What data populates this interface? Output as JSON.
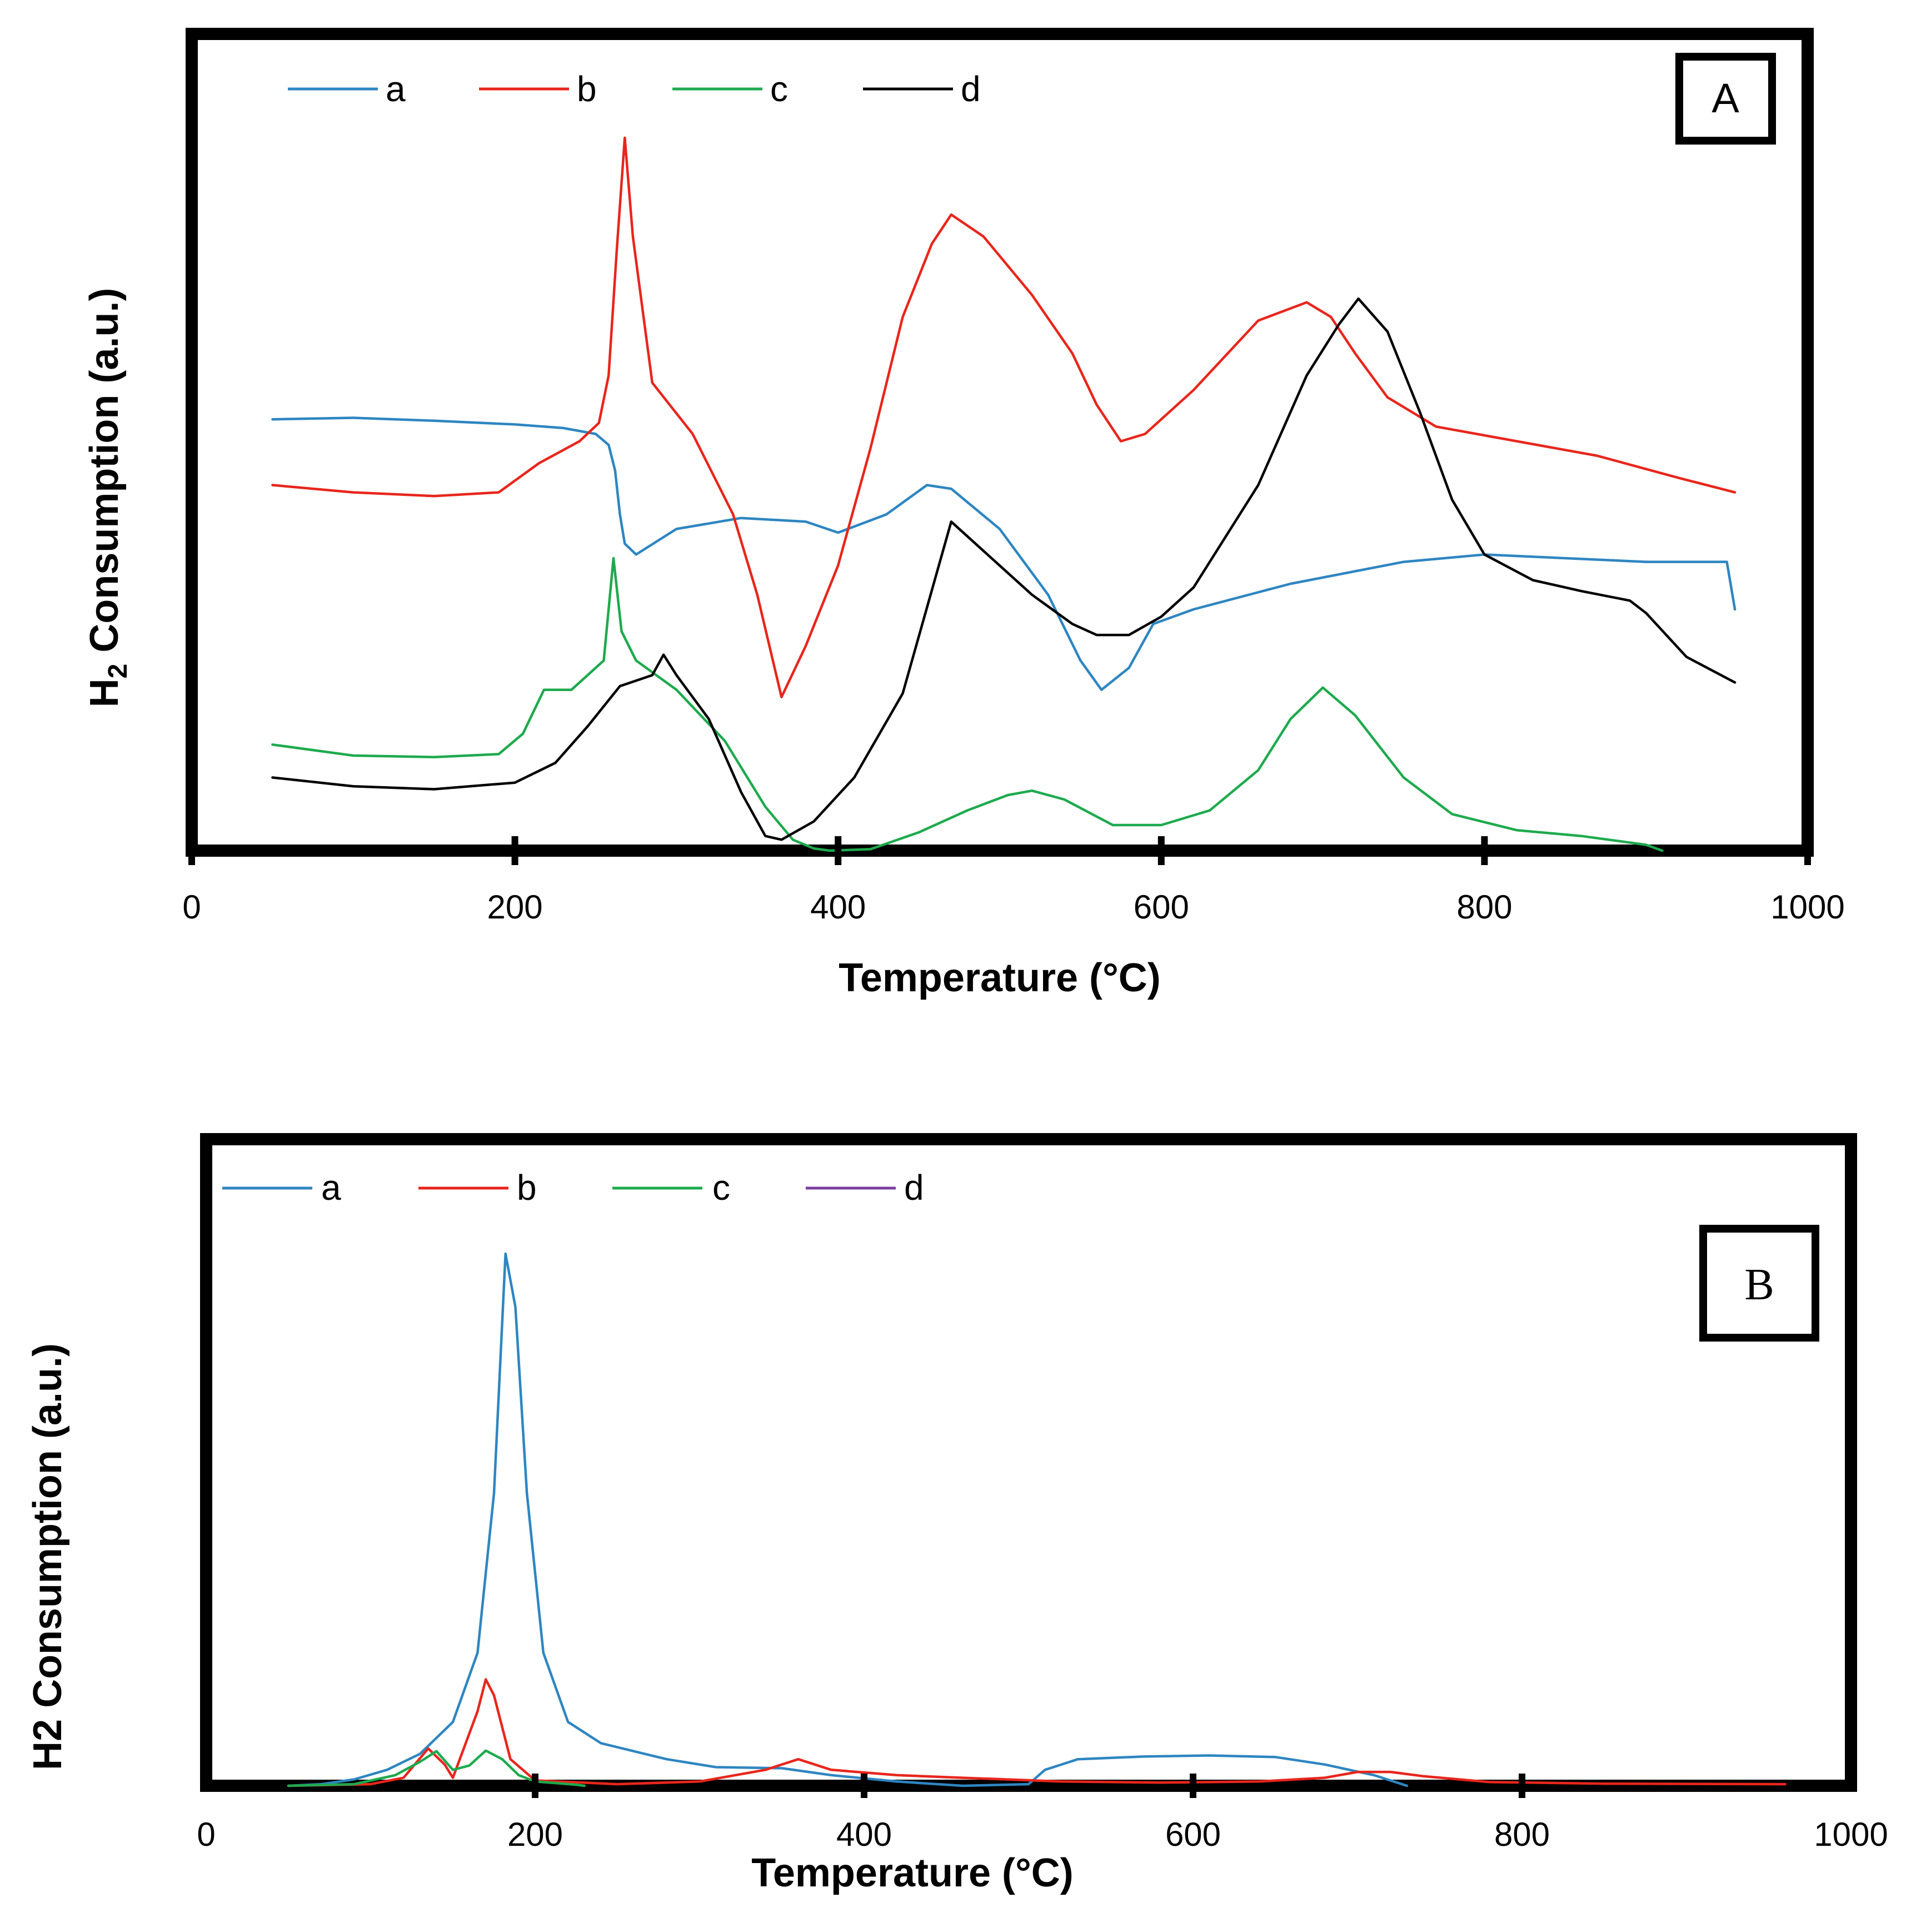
{
  "chart_data": [
    {
      "panel": "A",
      "type": "line",
      "xlabel": "Temperature (°C)",
      "ylabel": "H2 Consumption (a.u.)",
      "ylabel_main": "H",
      "ylabel_sub": "2",
      "ylabel_rest": " Consumption (a.u.)",
      "xlim": [
        0,
        1000
      ],
      "ylim": [
        0,
        100
      ],
      "xticks": [
        0,
        200,
        400,
        600,
        800,
        1000
      ],
      "xtick_labels": [
        "0",
        "200",
        "400",
        "600",
        "800",
        "1000"
      ],
      "grid": false,
      "legend_position": "top-left",
      "series": [
        {
          "name": "a",
          "color": "#2e86c1",
          "points": [
            [
              50,
              59
            ],
            [
              100,
              59.2
            ],
            [
              150,
              58.8
            ],
            [
              200,
              58.3
            ],
            [
              230,
              57.8
            ],
            [
              250,
              57
            ],
            [
              258,
              55.5
            ],
            [
              262,
              52
            ],
            [
              265,
              46
            ],
            [
              268,
              42
            ],
            [
              275,
              40.5
            ],
            [
              300,
              44
            ],
            [
              340,
              45.5
            ],
            [
              380,
              45
            ],
            [
              400,
              43.5
            ],
            [
              430,
              46
            ],
            [
              455,
              50
            ],
            [
              470,
              49.5
            ],
            [
              500,
              44
            ],
            [
              530,
              35
            ],
            [
              550,
              26
            ],
            [
              563,
              22
            ],
            [
              580,
              25
            ],
            [
              595,
              31
            ],
            [
              620,
              33
            ],
            [
              680,
              36.5
            ],
            [
              750,
              39.5
            ],
            [
              800,
              40.5
            ],
            [
              850,
              40
            ],
            [
              900,
              39.5
            ],
            [
              950,
              39.5
            ],
            [
              955,
              33
            ]
          ]
        },
        {
          "name": "b",
          "color": "#e8261c",
          "points": [
            [
              50,
              50
            ],
            [
              100,
              49
            ],
            [
              150,
              48.5
            ],
            [
              190,
              49
            ],
            [
              215,
              53
            ],
            [
              240,
              56
            ],
            [
              252,
              58.5
            ],
            [
              258,
              65
            ],
            [
              263,
              82
            ],
            [
              268,
              97.5
            ],
            [
              273,
              84
            ],
            [
              285,
              64
            ],
            [
              310,
              57
            ],
            [
              335,
              46
            ],
            [
              350,
              35
            ],
            [
              365,
              21
            ],
            [
              380,
              28
            ],
            [
              400,
              39
            ],
            [
              420,
              55
            ],
            [
              440,
              73
            ],
            [
              458,
              83
            ],
            [
              470,
              87
            ],
            [
              490,
              84
            ],
            [
              520,
              76
            ],
            [
              545,
              68
            ],
            [
              560,
              61
            ],
            [
              575,
              56
            ],
            [
              590,
              57
            ],
            [
              620,
              63
            ],
            [
              660,
              72.5
            ],
            [
              690,
              75
            ],
            [
              705,
              73
            ],
            [
              720,
              68
            ],
            [
              740,
              62
            ],
            [
              770,
              58
            ],
            [
              820,
              56
            ],
            [
              870,
              54
            ],
            [
              920,
              51
            ],
            [
              955,
              49
            ]
          ]
        },
        {
          "name": "c",
          "color": "#1eaa4e",
          "points": [
            [
              50,
              14.5
            ],
            [
              100,
              13
            ],
            [
              150,
              12.8
            ],
            [
              190,
              13.2
            ],
            [
              205,
              16
            ],
            [
              218,
              22
            ],
            [
              235,
              22
            ],
            [
              255,
              26
            ],
            [
              261,
              40
            ],
            [
              266,
              30
            ],
            [
              275,
              26
            ],
            [
              300,
              22
            ],
            [
              330,
              15
            ],
            [
              355,
              6
            ],
            [
              372,
              1.5
            ],
            [
              385,
              0.3
            ],
            [
              395,
              0
            ],
            [
              420,
              0.2
            ],
            [
              450,
              2.5
            ],
            [
              480,
              5.5
            ],
            [
              505,
              7.6
            ],
            [
              520,
              8.2
            ],
            [
              540,
              7
            ],
            [
              570,
              3.5
            ],
            [
              600,
              3.5
            ],
            [
              630,
              5.5
            ],
            [
              660,
              11
            ],
            [
              680,
              18
            ],
            [
              700,
              22.3
            ],
            [
              720,
              18.5
            ],
            [
              750,
              10
            ],
            [
              780,
              5
            ],
            [
              820,
              2.8
            ],
            [
              860,
              2
            ],
            [
              900,
              0.8
            ],
            [
              910,
              0
            ]
          ]
        },
        {
          "name": "d",
          "color": "#000000",
          "points": [
            [
              50,
              10
            ],
            [
              100,
              8.8
            ],
            [
              150,
              8.4
            ],
            [
              200,
              9.3
            ],
            [
              225,
              12
            ],
            [
              245,
              17
            ],
            [
              265,
              22.5
            ],
            [
              285,
              24
            ],
            [
              292,
              26.8
            ],
            [
              300,
              24
            ],
            [
              320,
              18
            ],
            [
              340,
              8
            ],
            [
              355,
              2
            ],
            [
              365,
              1.5
            ],
            [
              385,
              4
            ],
            [
              410,
              10
            ],
            [
              440,
              21.5
            ],
            [
              470,
              45
            ],
            [
              490,
              41
            ],
            [
              520,
              35
            ],
            [
              545,
              31
            ],
            [
              560,
              29.5
            ],
            [
              580,
              29.5
            ],
            [
              600,
              32
            ],
            [
              620,
              36
            ],
            [
              660,
              50
            ],
            [
              690,
              65
            ],
            [
              710,
              72
            ],
            [
              722,
              75.5
            ],
            [
              740,
              71
            ],
            [
              760,
              60
            ],
            [
              780,
              48
            ],
            [
              800,
              40.5
            ],
            [
              830,
              37
            ],
            [
              860,
              35.5
            ],
            [
              890,
              34.2
            ],
            [
              900,
              32.5
            ],
            [
              925,
              26.5
            ],
            [
              955,
              23
            ]
          ]
        }
      ]
    },
    {
      "panel": "B",
      "type": "line",
      "xlabel": "Temperature (°C)",
      "ylabel": "H2 Consumption (a.u.)",
      "xlim": [
        0,
        1000
      ],
      "ylim": [
        0,
        100
      ],
      "xticks": [
        0,
        200,
        400,
        600,
        800,
        1000
      ],
      "xtick_labels": [
        "0",
        "200",
        "400",
        "600",
        "800",
        "1000"
      ],
      "grid": false,
      "legend_position": "top-left",
      "series": [
        {
          "name": "a",
          "color": "#2e86c1",
          "points": [
            [
              50,
              0
            ],
            [
              70,
              0.3
            ],
            [
              90,
              1.2
            ],
            [
              110,
              3
            ],
            [
              130,
              6
            ],
            [
              150,
              12
            ],
            [
              165,
              25
            ],
            [
              175,
              55
            ],
            [
              182,
              100
            ],
            [
              188,
              90
            ],
            [
              195,
              55
            ],
            [
              205,
              25
            ],
            [
              220,
              12
            ],
            [
              240,
              8
            ],
            [
              260,
              6.5
            ],
            [
              280,
              5
            ],
            [
              310,
              3.5
            ],
            [
              350,
              3.3
            ],
            [
              380,
              2
            ],
            [
              420,
              0.8
            ],
            [
              460,
              0
            ],
            [
              500,
              0.3
            ],
            [
              510,
              3
            ],
            [
              530,
              5
            ],
            [
              570,
              5.5
            ],
            [
              610,
              5.7
            ],
            [
              650,
              5.4
            ],
            [
              680,
              4
            ],
            [
              710,
              2
            ],
            [
              730,
              0
            ]
          ]
        },
        {
          "name": "b",
          "color": "#e8261c",
          "points": [
            [
              50,
              0
            ],
            [
              100,
              0.3
            ],
            [
              120,
              1.5
            ],
            [
              135,
              7
            ],
            [
              145,
              4
            ],
            [
              150,
              1.5
            ],
            [
              165,
              14
            ],
            [
              170,
              20
            ],
            [
              175,
              17
            ],
            [
              185,
              5
            ],
            [
              200,
              1
            ],
            [
              250,
              0.3
            ],
            [
              300,
              0.8
            ],
            [
              340,
              3
            ],
            [
              360,
              5
            ],
            [
              380,
              3
            ],
            [
              420,
              2
            ],
            [
              460,
              1.5
            ],
            [
              520,
              0.8
            ],
            [
              580,
              0.6
            ],
            [
              640,
              0.8
            ],
            [
              680,
              1.5
            ],
            [
              700,
              2.6
            ],
            [
              720,
              2.6
            ],
            [
              740,
              1.8
            ],
            [
              780,
              0.7
            ],
            [
              850,
              0.4
            ],
            [
              960,
              0.3
            ]
          ]
        },
        {
          "name": "c",
          "color": "#1eaa4e",
          "points": [
            [
              50,
              0
            ],
            [
              90,
              0.3
            ],
            [
              115,
              2
            ],
            [
              130,
              4.5
            ],
            [
              140,
              6.5
            ],
            [
              150,
              3
            ],
            [
              160,
              3.8
            ],
            [
              170,
              6.6
            ],
            [
              180,
              5
            ],
            [
              190,
              2
            ],
            [
              200,
              0.8
            ],
            [
              225,
              0.2
            ],
            [
              230,
              0
            ]
          ]
        },
        {
          "name": "d",
          "color": "#7b3fa0",
          "points": []
        }
      ]
    }
  ],
  "panel_labels": {
    "a": "A",
    "b": "B"
  }
}
